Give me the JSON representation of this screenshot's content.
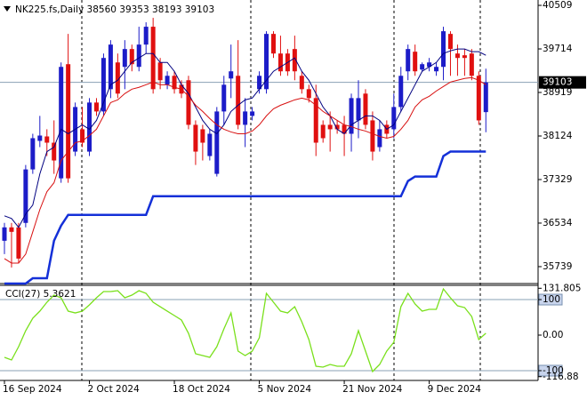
{
  "chart_data": [
    {
      "type": "candlestick",
      "title": "NK225.fs,Daily  38560 39353 38193 39103",
      "categories": [
        "16 Sep 2024",
        null,
        null,
        null,
        null,
        null,
        null,
        null,
        null,
        null,
        null,
        null,
        "2 Oct 2024",
        null,
        null,
        null,
        null,
        null,
        null,
        null,
        null,
        null,
        null,
        null,
        "18 Oct 2024",
        null,
        null,
        null,
        null,
        null,
        null,
        null,
        null,
        null,
        null,
        null,
        "5 Nov 2024",
        null,
        null,
        null,
        null,
        null,
        null,
        null,
        null,
        null,
        null,
        null,
        "21 Nov 2024",
        null,
        null,
        null,
        null,
        null,
        null,
        null,
        null,
        null,
        null,
        null,
        "9 Dec 2024",
        null,
        null,
        null,
        null,
        null,
        null,
        null,
        null
      ],
      "open": [
        36211,
        36456,
        36456,
        36537,
        37514,
        38035,
        38116,
        38002,
        37351,
        39435,
        37839,
        38247,
        37839,
        38735,
        38572,
        38979,
        39467,
        39386,
        39712,
        39386,
        39793,
        40119,
        39467,
        39060,
        39223,
        39060,
        39142,
        38328,
        38247,
        37758,
        37433,
        38572,
        39174,
        39223,
        38328,
        38491,
        38979,
        38979,
        39988,
        39630,
        39630,
        39712,
        39223,
        38979,
        38816,
        38328,
        38328,
        38328,
        38328,
        38165,
        38409,
        38898,
        38409,
        37921,
        38328,
        38247,
        38653,
        39305,
        39663,
        39337,
        39386,
        39305,
        39386,
        39988,
        39630,
        39598,
        39630,
        39223,
        38560
      ],
      "high": [
        36537,
        36537,
        36537,
        37595,
        38165,
        38491,
        38247,
        38409,
        39467,
        39988,
        38735,
        38653,
        38816,
        38816,
        39630,
        39874,
        39630,
        39874,
        39793,
        40119,
        40200,
        40281,
        39549,
        39305,
        39305,
        39142,
        39223,
        38409,
        38328,
        38247,
        38653,
        39223,
        39793,
        39874,
        38816,
        38653,
        39305,
        40037,
        40037,
        39956,
        39712,
        39956,
        39305,
        39060,
        39060,
        38409,
        38572,
        38409,
        38491,
        38898,
        39142,
        38979,
        38572,
        38409,
        38409,
        38898,
        39386,
        39793,
        39793,
        39467,
        39549,
        39467,
        40119,
        40037,
        39793,
        39712,
        39712,
        39305,
        39353
      ],
      "low": [
        35967,
        35723,
        35804,
        36456,
        37433,
        37921,
        37758,
        37433,
        37270,
        37270,
        37758,
        37921,
        37758,
        38491,
        38491,
        38816,
        38816,
        38979,
        39305,
        39305,
        39630,
        38898,
        38979,
        38979,
        38898,
        38816,
        38247,
        37595,
        37677,
        37677,
        37384,
        38328,
        38816,
        38247,
        37921,
        38409,
        38898,
        38898,
        39549,
        39223,
        39223,
        39142,
        38898,
        38735,
        37758,
        38002,
        37839,
        38165,
        37758,
        37839,
        38084,
        38247,
        37677,
        37839,
        38084,
        38084,
        38572,
        39142,
        39223,
        39305,
        39305,
        39223,
        39142,
        39223,
        39223,
        39223,
        39142,
        38328,
        38193
      ],
      "close": [
        36456,
        36374,
        35886,
        37514,
        38084,
        38132,
        38002,
        37677,
        39386,
        37351,
        38653,
        38002,
        38735,
        38572,
        39549,
        39793,
        38898,
        39712,
        39435,
        39793,
        40119,
        38979,
        39142,
        39223,
        38979,
        38898,
        38328,
        37839,
        38002,
        38165,
        38572,
        39060,
        39305,
        38328,
        38572,
        38572,
        39223,
        39988,
        39630,
        39305,
        39305,
        39305,
        38979,
        38816,
        38002,
        38084,
        38247,
        38247,
        38165,
        38816,
        38816,
        38328,
        37839,
        38247,
        38165,
        38653,
        39223,
        39712,
        39305,
        39435,
        39467,
        39386,
        40037,
        39712,
        39549,
        39549,
        39223,
        38409,
        39103
      ],
      "up_color": "#1c1cc8",
      "down_color": "#e01010",
      "lines": [
        {
          "color": "#000080",
          "width": 1,
          "values": [
            36667,
            36618,
            36456,
            36700,
            36863,
            37433,
            37839,
            37921,
            38247,
            38165,
            38247,
            38328,
            38247,
            38409,
            38735,
            39060,
            39142,
            39305,
            39467,
            39549,
            39630,
            39630,
            39467,
            39467,
            39305,
            39060,
            38898,
            38653,
            38409,
            38247,
            38165,
            38328,
            38572,
            38686,
            38784,
            38816,
            38979,
            39142,
            39305,
            39386,
            39467,
            39549,
            39305,
            39142,
            38898,
            38653,
            38491,
            38247,
            38165,
            38328,
            38409,
            38491,
            38491,
            38409,
            38247,
            38328,
            38572,
            38816,
            39060,
            39305,
            39386,
            39467,
            39630,
            39679,
            39712,
            39712,
            39663,
            39663,
            39598
          ]
        },
        {
          "color": "#d81010",
          "width": 1,
          "values": [
            35886,
            35804,
            35804,
            35967,
            36374,
            36781,
            37107,
            37270,
            37677,
            37839,
            38002,
            38035,
            38132,
            38247,
            38491,
            38735,
            38784,
            38898,
            38979,
            39012,
            39060,
            39109,
            39060,
            39060,
            39012,
            38979,
            38849,
            38686,
            38572,
            38442,
            38328,
            38247,
            38198,
            38165,
            38165,
            38214,
            38328,
            38491,
            38621,
            38686,
            38735,
            38784,
            38816,
            38784,
            38686,
            38572,
            38491,
            38409,
            38328,
            38295,
            38247,
            38214,
            38165,
            38116,
            38084,
            38116,
            38247,
            38409,
            38653,
            38784,
            38849,
            38946,
            39028,
            39109,
            39142,
            39174,
            39191,
            39142,
            39060
          ]
        },
        {
          "color": "#1430d8",
          "width": 2.5,
          "values": [
            35430,
            35430,
            35430,
            35430,
            35528,
            35528,
            35528,
            36211,
            36488,
            36684,
            36684,
            36684,
            36684,
            36684,
            36684,
            36684,
            36684,
            36684,
            36684,
            36684,
            36684,
            37025,
            37025,
            37025,
            37025,
            37025,
            37025,
            37025,
            37025,
            37025,
            37025,
            37025,
            37025,
            37025,
            37025,
            37025,
            37025,
            37025,
            37025,
            37025,
            37025,
            37025,
            37025,
            37025,
            37025,
            37025,
            37025,
            37025,
            37025,
            37025,
            37025,
            37025,
            37025,
            37025,
            37025,
            37025,
            37025,
            37302,
            37384,
            37384,
            37384,
            37384,
            37758,
            37839,
            37839,
            37839,
            37839,
            37839,
            37839
          ]
        }
      ],
      "last_price": 39103,
      "ylim": [
        35430,
        40607
      ],
      "yticks": [
        40509,
        39714,
        38919,
        38124,
        37329,
        36534,
        35739
      ]
    },
    {
      "type": "line",
      "title": "CCI(27) 5.3621",
      "color": "#7ae01c",
      "values": [
        -62.5,
        -70,
        -32.5,
        12.5,
        47.5,
        67.5,
        92.5,
        112.5,
        105,
        67.5,
        62.5,
        67.5,
        85,
        105,
        122.5,
        122.5,
        125,
        105,
        112.5,
        125,
        117.5,
        92.5,
        80,
        67.5,
        55,
        42.5,
        5,
        -52.5,
        -57.5,
        -62.5,
        -32.5,
        17.5,
        62.5,
        -45,
        -57.5,
        -45,
        -7.5,
        117.5,
        92.5,
        67.5,
        62.5,
        80,
        37.5,
        -12.5,
        -87.5,
        -90,
        -82.5,
        -87.5,
        -87.5,
        -52.5,
        12.5,
        -45,
        -102.5,
        -82.5,
        -45,
        -20,
        80,
        117.5,
        87.5,
        67.5,
        72.5,
        72.5,
        130,
        105,
        82.5,
        77.5,
        52.5,
        -12.5,
        5.3621
      ],
      "levels": [
        100,
        -100
      ],
      "ylim": [
        -116.88,
        131.805
      ],
      "yticks": [
        131.805,
        100,
        {
          "value": 0,
          "label": "0.00"
        },
        -100,
        -116.88
      ]
    }
  ]
}
